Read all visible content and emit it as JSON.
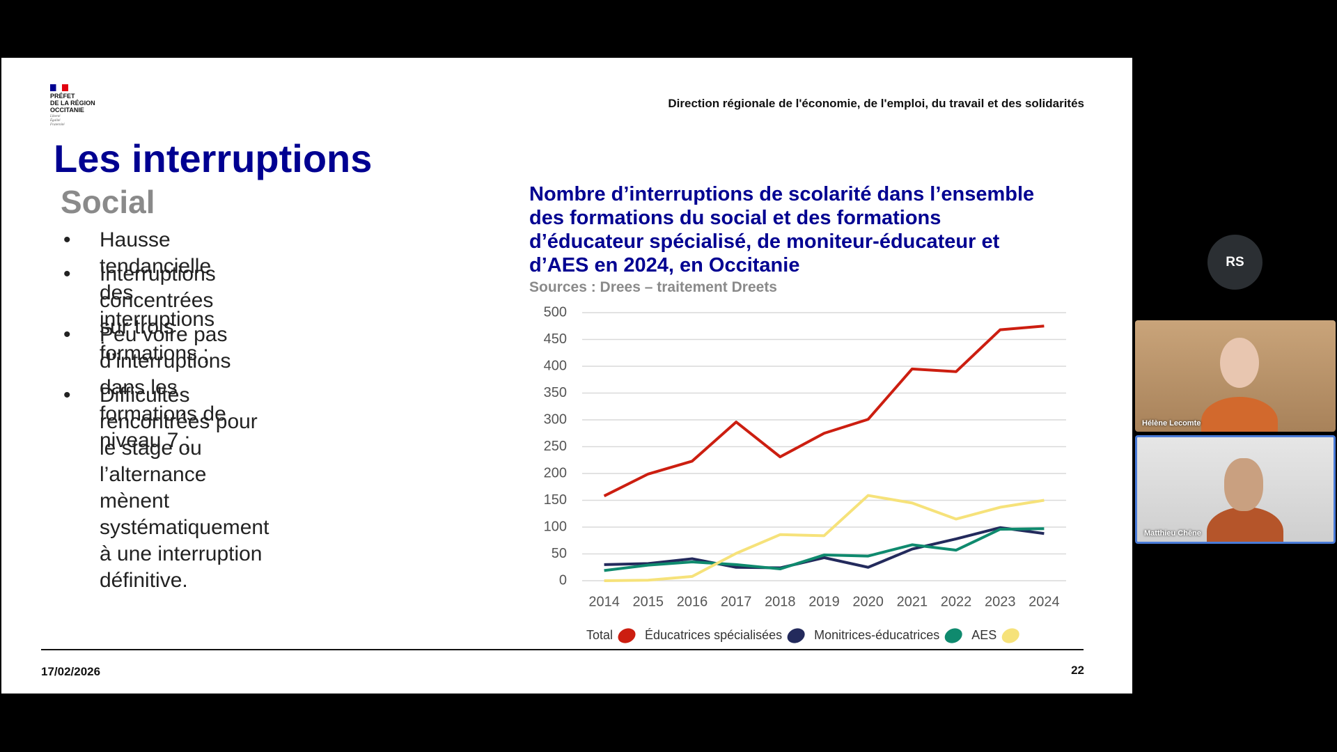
{
  "slide": {
    "logo": [
      "PRÉFET",
      "DE LA RÉGION",
      "OCCITANIE"
    ],
    "motto": [
      "Liberté",
      "Égalité",
      "Fraternité"
    ],
    "header": "Direction régionale de l'économie, de l'emploi, du travail et des solidarités",
    "title": "Les interruptions",
    "subtitle": "Social",
    "bullets": [
      [
        "Hausse tendancielle des interruptions ;"
      ],
      [
        "Interruptions concentrées sur trois",
        "formations ;"
      ],
      [
        "Peu voire pas d’interruptions dans les",
        "formations de niveau 7 ;"
      ],
      [
        "Difficultés rencontrées pour le stage ou",
        "l’alternance mènent systématiquement",
        "à une interruption définitive."
      ]
    ],
    "date": "17/02/2026",
    "page": "22"
  },
  "chart_data": {
    "type": "line",
    "title": [
      "Nombre d’interruptions de scolarité dans l’ensemble",
      "des formations du social et des formations",
      "d’éducateur spécialisé, de moniteur-éducateur et",
      "d’AES en 2024, en Occitanie"
    ],
    "subtitle": "Sources : Drees – traitement Dreets",
    "categories": [
      "2014",
      "2015",
      "2016",
      "2017",
      "2018",
      "2019",
      "2020",
      "2021",
      "2022",
      "2023",
      "2024"
    ],
    "series": [
      {
        "name": "Total",
        "color": "#cc1e10",
        "values": [
          158,
          199,
          223,
          296,
          231,
          275,
          301,
          395,
          390,
          468,
          475
        ]
      },
      {
        "name": "Éducatrices spécialisées",
        "color": "#232a5c",
        "values": [
          30,
          32,
          41,
          25,
          24,
          43,
          25,
          59,
          78,
          99,
          88
        ]
      },
      {
        "name": "Monitrices-éducatrices",
        "color": "#0f8a6e",
        "values": [
          19,
          29,
          35,
          30,
          22,
          48,
          46,
          67,
          57,
          96,
          97
        ]
      },
      {
        "name": "AES",
        "color": "#f6e27a",
        "values": [
          0,
          1,
          8,
          51,
          86,
          84,
          159,
          145,
          115,
          137,
          150
        ]
      }
    ],
    "ylim": [
      0,
      500
    ],
    "yticks": [
      0,
      50,
      100,
      150,
      200,
      250,
      300,
      350,
      400,
      450,
      500
    ],
    "grid": true
  },
  "participants": {
    "initials": "RS",
    "names": [
      "Hélène Lecomte",
      "Matthieu Chêne"
    ]
  }
}
